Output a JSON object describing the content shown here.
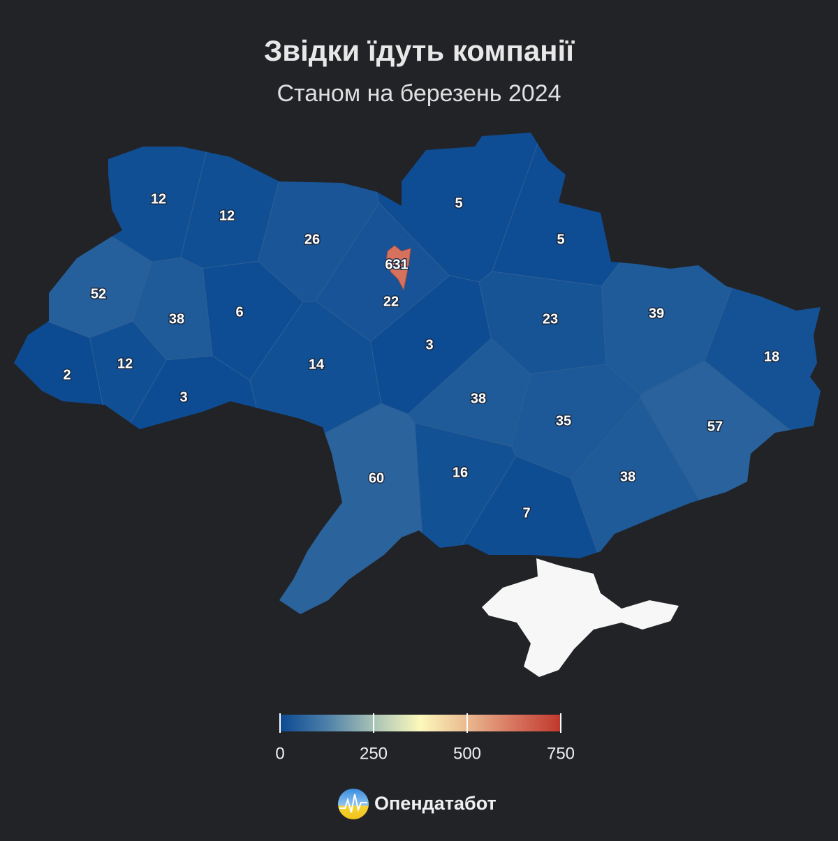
{
  "map_data": {
    "type": "choropleth",
    "title": "Звідки їдуть компанії",
    "subtitle": "Станом на березень 2024",
    "values": [
      12,
      12,
      26,
      631,
      22,
      5,
      5,
      52,
      38,
      6,
      14,
      3,
      23,
      39,
      18,
      2,
      12,
      3,
      38,
      35,
      57,
      60,
      16,
      7,
      38
    ],
    "colorscale": {
      "range": [
        0,
        750
      ],
      "ticks": [
        0,
        250,
        500,
        750
      ],
      "colors": [
        "#0b4a92",
        "#4d7fa9",
        "#a8c3b5",
        "#fdf8bc",
        "#eab98f",
        "#d7745f",
        "#c0392b"
      ]
    }
  },
  "brand": "Опендатабот"
}
